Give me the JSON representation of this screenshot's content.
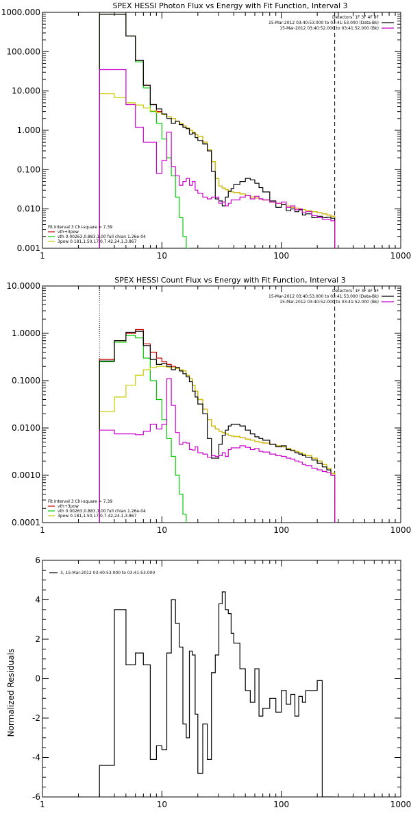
{
  "chart_data": [
    {
      "type": "line",
      "title": "SPEX HESSI Photon Flux vs Energy with Fit Function, Interval 3",
      "xlabel": "",
      "ylabel": "",
      "xscale": "log",
      "yscale": "log",
      "xlim": [
        1,
        1000
      ],
      "ylim": [
        0.001,
        1000
      ],
      "x_ticks": [
        1,
        10,
        100,
        1000
      ],
      "x_tick_labels": [
        "1",
        "10",
        "100",
        "1000"
      ],
      "y_ticks": [
        0.001,
        0.01,
        0.1,
        1,
        10,
        100,
        1000
      ],
      "y_tick_labels": [
        "0.001",
        "0.010",
        "0.100",
        "1.000",
        "10.000",
        "100.000",
        "1000.000"
      ],
      "legend_top": [
        {
          "text": "Detectors: 1F 3F 4F 8F",
          "color": "#000000"
        },
        {
          "text": "15-Mar-2012 03:40:53.000 to 03:41:53.000 (Data-Bk)",
          "color": "#000000"
        },
        {
          "text": "15-Mar-2012 03:40:52.000 to 03:41:52.000 (Bk)",
          "color": "#cc00cc"
        }
      ],
      "legend_bottom": [
        {
          "text": "Fit Interval 3   Chi-square = 7.39",
          "color": "#000000"
        },
        {
          "text": "vth+3pow",
          "color": "#cc0000"
        },
        {
          "text": "vth 0.00263,0.883,1.00  full chian 1.26e-04",
          "color": "#00cc00"
        },
        {
          "text": "3pow 0.181,1.50,17.0,7.42,24.1,3.867",
          "color": "#cccc00"
        }
      ],
      "vlines": [
        {
          "x": 3,
          "style": "dotted",
          "color": "#000000"
        },
        {
          "x": 280,
          "style": "dashed",
          "color": "#000000"
        }
      ],
      "bin_edges": [
        3.0,
        4.0,
        5.0,
        6.0,
        7.0,
        8.0,
        9.0,
        10.0,
        11.0,
        12.0,
        13.0,
        14.0,
        15.0,
        16.0,
        17.0,
        18.0,
        19.0,
        20.0,
        22.0,
        24.0,
        26.0,
        28.0,
        30.0,
        32.0,
        34.0,
        36.0,
        38.0,
        40.0,
        45.0,
        50.0,
        55.0,
        60.0,
        65.0,
        70.0,
        80.0,
        90.0,
        100.0,
        110.0,
        120.0,
        130.0,
        140.0,
        150.0,
        160.0,
        180.0,
        200.0,
        220.0,
        240.0,
        260.0,
        280.0
      ],
      "series": [
        {
          "name": "vth+3pow",
          "color": "#cc0000",
          "values": [
            900,
            900,
            250,
            60,
            14,
            4.5,
            3.0,
            2.6,
            2.2,
            2.0,
            1.7,
            1.5,
            1.3,
            1.15,
            1.0,
            0.9,
            0.78,
            0.7,
            0.5,
            0.32,
            0.16,
            0.06,
            0.038,
            0.034,
            0.031,
            0.029,
            0.027,
            0.026,
            0.024,
            0.022,
            0.02,
            0.019,
            0.018,
            0.017,
            0.015,
            0.014,
            0.013,
            0.012,
            0.011,
            0.0105,
            0.01,
            0.0095,
            0.009,
            0.0085,
            0.008,
            0.0075,
            0.007,
            0.0065
          ]
        },
        {
          "name": "vth",
          "color": "#00cc00",
          "values": [
            900,
            900,
            250,
            55,
            12,
            3.0,
            1.5,
            0.6,
            0.2,
            0.07,
            0.02,
            0.006,
            0.002,
            0.0007
          ]
        },
        {
          "name": "3pow",
          "color": "#cccc00",
          "values": [
            8.5,
            6.8,
            5.0,
            4.4,
            3.7,
            3.1,
            2.8,
            2.5,
            2.2,
            2.0,
            1.7,
            1.5,
            1.3,
            1.15,
            1.0,
            0.9,
            0.78,
            0.7,
            0.5,
            0.32,
            0.16,
            0.06,
            0.038,
            0.034,
            0.031,
            0.029,
            0.027,
            0.026,
            0.024,
            0.022,
            0.02,
            0.019,
            0.018,
            0.017,
            0.015,
            0.014,
            0.013,
            0.012,
            0.011,
            0.0105,
            0.01,
            0.0095,
            0.009,
            0.0085,
            0.008,
            0.0075,
            0.007,
            0.0065
          ]
        },
        {
          "name": "data",
          "color": "#000000",
          "values": [
            900,
            900,
            250,
            60,
            14,
            4.5,
            3.5,
            2.6,
            2.0,
            1.5,
            1.7,
            1.4,
            1.2,
            1.1,
            0.8,
            0.85,
            0.65,
            0.55,
            0.45,
            0.3,
            0.09,
            0.018,
            0.016,
            0.012,
            0.02,
            0.028,
            0.033,
            0.042,
            0.05,
            0.06,
            0.055,
            0.045,
            0.035,
            0.027,
            0.016,
            0.011,
            0.013,
            0.009,
            0.01,
            0.0085,
            0.0095,
            0.007,
            0.0075,
            0.006,
            0.0065,
            0.006,
            0.0062,
            0.0058
          ]
        },
        {
          "name": "background",
          "color": "#cc00cc",
          "values": [
            35,
            35,
            4.5,
            1.2,
            0.5,
            0.5,
            0.08,
            0.17,
            0.9,
            0.12,
            0.07,
            0.04,
            0.05,
            0.06,
            0.04,
            0.05,
            0.03,
            0.025,
            0.02,
            0.018,
            0.02,
            0.02,
            0.014,
            0.015,
            0.012,
            0.014,
            0.017,
            0.017,
            0.02,
            0.022,
            0.018,
            0.021,
            0.018,
            0.017,
            0.015,
            0.014,
            0.015,
            0.011,
            0.012,
            0.0095,
            0.01,
            0.008,
            0.0085,
            0.0068,
            0.006,
            0.0055,
            0.0055,
            0.005
          ]
        }
      ]
    },
    {
      "type": "line",
      "title": "SPEX HESSI Count Flux vs Energy with Fit Function, Interval 3",
      "xlabel": "",
      "ylabel": "",
      "xscale": "log",
      "yscale": "log",
      "xlim": [
        1,
        1000
      ],
      "ylim": [
        0.0001,
        10
      ],
      "x_ticks": [
        1,
        10,
        100,
        1000
      ],
      "x_tick_labels": [
        "1",
        "10",
        "100",
        "1000"
      ],
      "y_ticks": [
        0.0001,
        0.001,
        0.01,
        0.1,
        1,
        10
      ],
      "y_tick_labels": [
        "0.0001",
        "0.0010",
        "0.0100",
        "0.1000",
        "1.0000",
        "10.0000"
      ],
      "legend_top": [
        {
          "text": "Detectors: 1F 3F 4F 8F",
          "color": "#000000"
        },
        {
          "text": "15-Mar-2012 03:40:53.000 to 03:41:53.000 (Data-Bk)",
          "color": "#000000"
        },
        {
          "text": "15-Mar-2012 03:40:52.000 to 03:41:52.000 (Bk)",
          "color": "#cc00cc"
        }
      ],
      "legend_bottom": [
        {
          "text": "Fit Interval 3   Chi-square = 7.39",
          "color": "#000000"
        },
        {
          "text": "vth+3pow",
          "color": "#cc0000"
        },
        {
          "text": "vth 0.00263,0.883,1.00  full chian 1.26e-04",
          "color": "#00cc00"
        },
        {
          "text": "3pow 0.181,1.50,17.0,7.42,24.1,3.867",
          "color": "#cccc00"
        }
      ],
      "vlines": [
        {
          "x": 3,
          "style": "dotted",
          "color": "#000000"
        },
        {
          "x": 280,
          "style": "dashed",
          "color": "#000000"
        }
      ],
      "bin_edges": [
        3.0,
        4.0,
        5.0,
        6.0,
        7.0,
        8.0,
        9.0,
        10.0,
        11.0,
        12.0,
        13.0,
        14.0,
        15.0,
        16.0,
        17.0,
        18.0,
        19.0,
        20.0,
        22.0,
        24.0,
        26.0,
        28.0,
        30.0,
        32.0,
        34.0,
        36.0,
        38.0,
        40.0,
        45.0,
        50.0,
        55.0,
        60.0,
        65.0,
        70.0,
        80.0,
        90.0,
        100.0,
        110.0,
        120.0,
        130.0,
        140.0,
        150.0,
        160.0,
        180.0,
        200.0,
        220.0,
        240.0,
        260.0,
        280.0
      ],
      "series": [
        {
          "name": "vth+3pow",
          "color": "#cc0000",
          "values": [
            0.28,
            0.7,
            1.0,
            1.2,
            0.6,
            0.4,
            0.3,
            0.25,
            0.22,
            0.2,
            0.19,
            0.17,
            0.16,
            0.13,
            0.11,
            0.08,
            0.06,
            0.04,
            0.025,
            0.015,
            0.011,
            0.0095,
            0.0085,
            0.008,
            0.0075,
            0.007,
            0.0068,
            0.0066,
            0.0062,
            0.0058,
            0.0055,
            0.0052,
            0.005,
            0.0048,
            0.0045,
            0.0042,
            0.004,
            0.0037,
            0.0034,
            0.0032,
            0.003,
            0.0028,
            0.0026,
            0.0023,
            0.002,
            0.0017,
            0.0014,
            0.0011
          ]
        },
        {
          "name": "vth",
          "color": "#00cc00",
          "values": [
            0.25,
            0.65,
            0.9,
            0.8,
            0.3,
            0.1,
            0.04,
            0.015,
            0.006,
            0.0025,
            0.001,
            0.0004,
            0.00015
          ]
        },
        {
          "name": "3pow",
          "color": "#cccc00",
          "values": [
            0.022,
            0.045,
            0.08,
            0.13,
            0.17,
            0.19,
            0.2,
            0.2,
            0.19,
            0.19,
            0.18,
            0.17,
            0.16,
            0.13,
            0.11,
            0.08,
            0.06,
            0.04,
            0.025,
            0.015,
            0.011,
            0.0095,
            0.0085,
            0.008,
            0.0075,
            0.007,
            0.0068,
            0.0066,
            0.0062,
            0.0058,
            0.0055,
            0.0052,
            0.005,
            0.0048,
            0.0045,
            0.0042,
            0.004,
            0.0037,
            0.0034,
            0.0032,
            0.003,
            0.0028,
            0.0026,
            0.0023,
            0.002,
            0.0017,
            0.0014,
            0.0011
          ]
        },
        {
          "name": "data",
          "color": "#000000",
          "values": [
            0.26,
            0.7,
            1.05,
            1.1,
            0.55,
            0.28,
            0.22,
            0.23,
            0.2,
            0.17,
            0.19,
            0.16,
            0.14,
            0.12,
            0.095,
            0.06,
            0.045,
            0.032,
            0.02,
            0.006,
            0.0023,
            0.0023,
            0.0045,
            0.007,
            0.009,
            0.011,
            0.012,
            0.012,
            0.011,
            0.009,
            0.0075,
            0.0065,
            0.006,
            0.0055,
            0.0045,
            0.004,
            0.0042,
            0.0035,
            0.0033,
            0.003,
            0.0028,
            0.0026,
            0.0024,
            0.0021,
            0.0018,
            0.0015,
            0.0013,
            0.001
          ]
        },
        {
          "name": "background",
          "color": "#cc00cc",
          "values": [
            0.009,
            0.0075,
            0.0075,
            0.0072,
            0.0085,
            0.012,
            0.0095,
            0.012,
            0.11,
            0.03,
            0.008,
            0.0045,
            0.005,
            0.0048,
            0.0035,
            0.0034,
            0.004,
            0.003,
            0.0028,
            0.0024,
            0.0026,
            0.0025,
            0.0026,
            0.003,
            0.0025,
            0.0035,
            0.0038,
            0.0038,
            0.0042,
            0.0039,
            0.0035,
            0.0037,
            0.0032,
            0.0031,
            0.0028,
            0.0026,
            0.0025,
            0.0023,
            0.0022,
            0.002,
            0.0019,
            0.0017,
            0.0016,
            0.0014,
            0.0013,
            0.0012,
            0.00115,
            0.001
          ]
        }
      ]
    },
    {
      "type": "line",
      "title": "",
      "xlabel": "",
      "ylabel": "Normalized Residuals",
      "xscale": "log",
      "yscale": "linear",
      "xlim": [
        1,
        1000
      ],
      "ylim": [
        -6,
        6
      ],
      "x_ticks": [
        1,
        10,
        100,
        1000
      ],
      "x_tick_labels": [
        "1",
        "10",
        "100",
        "1000"
      ],
      "y_ticks": [
        -6,
        -4,
        -2,
        0,
        2,
        4,
        6
      ],
      "y_tick_labels": [
        "-6",
        "-4",
        "-2",
        "0",
        "2",
        "4",
        "6"
      ],
      "legend_top_left": {
        "text": "3, 15-Mar-2012 03:40:53.000 to 03:41:53.000",
        "color": "#000000"
      },
      "bin_edges": [
        3.0,
        4.0,
        5.0,
        6.0,
        7.0,
        8.0,
        9.0,
        10.0,
        11.0,
        12.0,
        13.0,
        14.0,
        15.0,
        16.0,
        17.0,
        18.0,
        19.0,
        20.0,
        22.0,
        24.0,
        26.0,
        28.0,
        30.0,
        32.0,
        34.0,
        36.0,
        38.0,
        40.0,
        45.0,
        50.0,
        55.0,
        60.0,
        65.0,
        70.0,
        80.0,
        90.0,
        100.0,
        110.0,
        120.0,
        130.0,
        140.0,
        150.0,
        160.0,
        180.0,
        200.0,
        220.0,
        240.0,
        260.0,
        280.0
      ],
      "series": [
        {
          "name": "residuals",
          "color": "#000000",
          "values": [
            -4.4,
            3.5,
            0.7,
            1.3,
            0.7,
            -4.1,
            -3.4,
            -3.6,
            1.3,
            4.0,
            2.8,
            1.6,
            -2.3,
            -3.0,
            1.4,
            1.2,
            -1.8,
            -4.8,
            -2.3,
            -4.1,
            0.3,
            1.2,
            3.8,
            4.4,
            3.5,
            3.3,
            2.3,
            1.8,
            0.5,
            -0.6,
            -1.2,
            0.5,
            -1.9,
            -1.5,
            -1.0,
            -1.7,
            -0.6,
            -1.3,
            -0.8,
            -1.9,
            -0.9,
            -1.2,
            -0.6,
            -0.6,
            -0.1,
            -6.0,
            -6.0,
            -6.0
          ]
        }
      ]
    }
  ]
}
